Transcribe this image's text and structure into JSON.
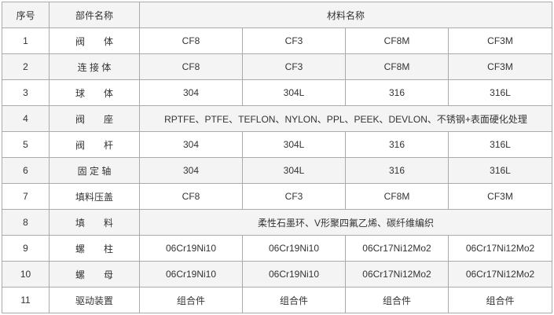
{
  "header": {
    "no": "序号",
    "part": "部件名称",
    "material": "材料名称"
  },
  "rows": [
    {
      "no": "1",
      "part": "阀　　体",
      "materials": [
        "CF8",
        "CF3",
        "CF8M",
        "CF3M"
      ]
    },
    {
      "no": "2",
      "part": "连 接 体",
      "materials": [
        "CF8",
        "CF3",
        "CF8M",
        "CF3M"
      ]
    },
    {
      "no": "3",
      "part": "球　　体",
      "materials": [
        "304",
        "304L",
        "316",
        "316L"
      ]
    },
    {
      "no": "4",
      "part": "阀　　座",
      "materials": [
        "RPTFE、PTFE、TEFLON、NYLON、PPL、PEEK、DEVLON、不锈钢+表面硬化处理"
      ]
    },
    {
      "no": "5",
      "part": "阀　　杆",
      "materials": [
        "304",
        "304L",
        "316",
        "316L"
      ]
    },
    {
      "no": "6",
      "part": "固 定 轴",
      "materials": [
        "304",
        "304L",
        "316",
        "316L"
      ]
    },
    {
      "no": "7",
      "part": "填料压盖",
      "materials": [
        "CF8",
        "CF3",
        "CF8M",
        "CF3M"
      ]
    },
    {
      "no": "8",
      "part": "填　　料",
      "materials": [
        "柔性石墨环、V形聚四氟乙烯、碳纤维编织"
      ]
    },
    {
      "no": "9",
      "part": "螺　　柱",
      "materials": [
        "06Cr19Ni10",
        "06Cr19Ni10",
        "06Cr17Ni12Mo2",
        "06Cr17Ni12Mo2"
      ]
    },
    {
      "no": "10",
      "part": "螺　　母",
      "materials": [
        "06Cr19Ni10",
        "06Cr19Ni10",
        "06Cr17Ni12Mo2",
        "06Cr17Ni12Mo2"
      ]
    },
    {
      "no": "11",
      "part": "驱动装置",
      "materials": [
        "组合件",
        "组合件",
        "组合件",
        "组合件"
      ]
    }
  ]
}
